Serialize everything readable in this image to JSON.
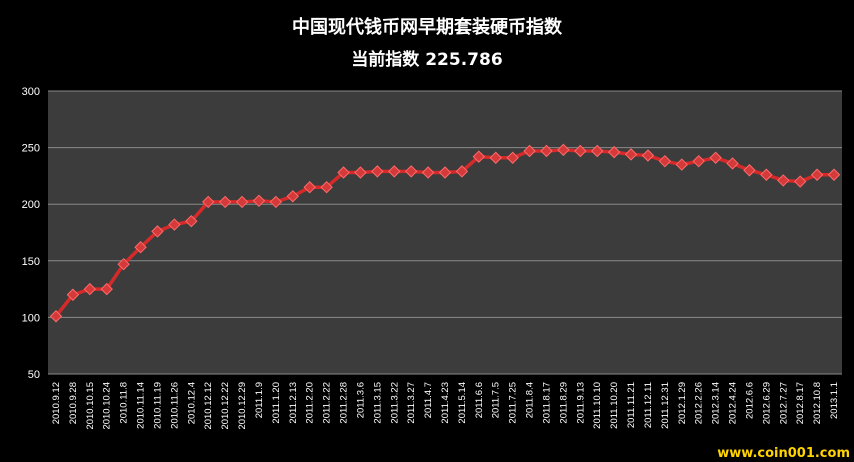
{
  "chart_data": {
    "type": "line",
    "title": "中国现代钱币网早期套装硬币指数",
    "subtitle": "当前指数 225.786",
    "xlabel": "",
    "ylabel": "",
    "ylim": [
      50,
      300
    ],
    "yticks": [
      50,
      100,
      150,
      200,
      250,
      300
    ],
    "grid": true,
    "legend": "none",
    "categories": [
      "2010.9.12",
      "2010.9.28",
      "2010.10.15",
      "2010.10.24",
      "2010.11.8",
      "2010.11.14",
      "2010.11.19",
      "2010.11.26",
      "2010.12.4",
      "2010.12.12",
      "2010.12.22",
      "2010.12.29",
      "2011.1.9",
      "2011.1.20",
      "2011.2.13",
      "2011.2.20",
      "2011.2.22",
      "2011.2.28",
      "2011.3.6",
      "2011.3.15",
      "2011.3.22",
      "2011.3.27",
      "2011.4.7",
      "2011.4.23",
      "2011.5.14",
      "2011.6.6",
      "2011.7.5",
      "2011.7.25",
      "2011.8.4",
      "2011.8.17",
      "2011.8.29",
      "2011.9.13",
      "2011.10.10",
      "2011.10.20",
      "2011.11.21",
      "2011.12.11",
      "2011.12.31",
      "2012.1.29",
      "2012.2.26",
      "2012.3.14",
      "2012.4.24",
      "2012.6.6",
      "2012.6.29",
      "2012.7.27",
      "2012.8.17",
      "2012.10.8",
      "2013.1.1"
    ],
    "series": [
      {
        "values": [
          101,
          120,
          125,
          125,
          147,
          162,
          176,
          182,
          185,
          202,
          202,
          202,
          203,
          202,
          207,
          215,
          215,
          228,
          228,
          229,
          229,
          229,
          228,
          228,
          229,
          242,
          241,
          241,
          247,
          247,
          248,
          247,
          247,
          246,
          244,
          243,
          238,
          235,
          238,
          241,
          236,
          230,
          226,
          221,
          220,
          226,
          226
        ]
      }
    ],
    "colors": {
      "background": "#000000",
      "plot_area": "#3c3c3c",
      "grid": "#8a8a8a",
      "line": "#d42a2a",
      "marker_fill": "#d43a3a",
      "marker_stroke": "#ff6a6a",
      "title": "#ffffff",
      "watermark": "#ffd400"
    }
  },
  "watermark": "www.coin001.com"
}
